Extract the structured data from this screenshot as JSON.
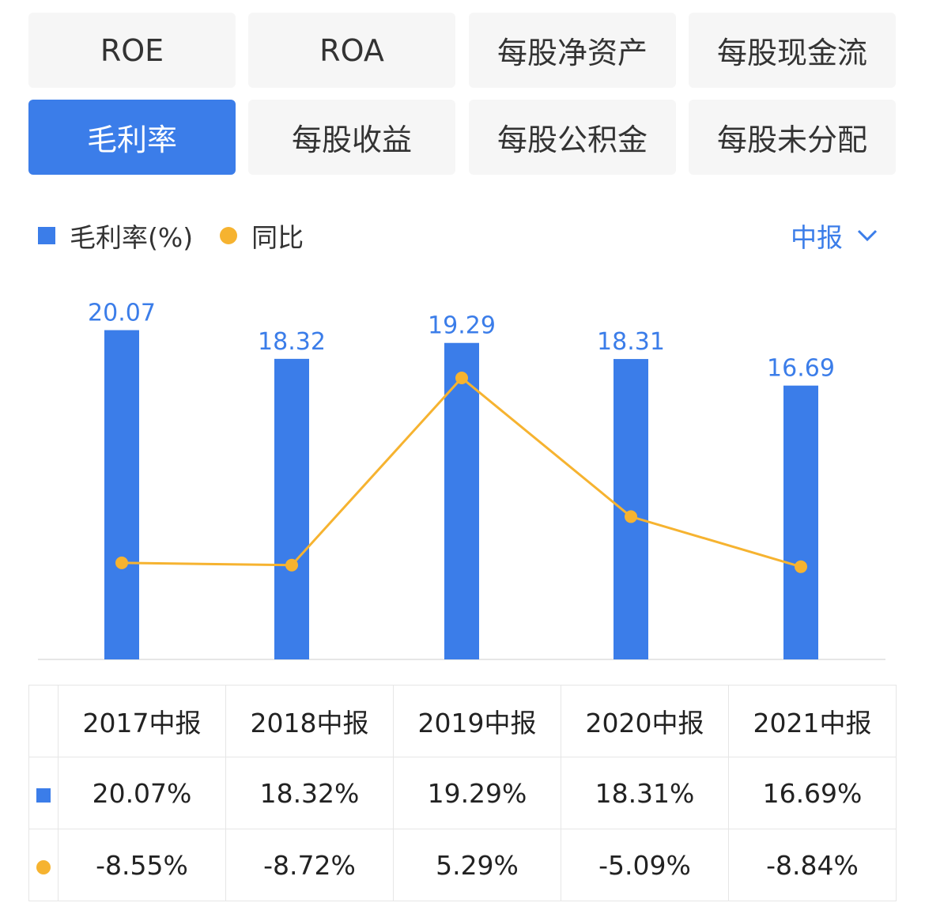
{
  "tabs": [
    {
      "label": "ROE",
      "active": false
    },
    {
      "label": "ROA",
      "active": false
    },
    {
      "label": "每股净资产",
      "active": false
    },
    {
      "label": "每股现金流",
      "active": false
    },
    {
      "label": "毛利率",
      "active": true
    },
    {
      "label": "每股收益",
      "active": false
    },
    {
      "label": "每股公积金",
      "active": false
    },
    {
      "label": "每股未分配",
      "active": false
    }
  ],
  "legend": {
    "bar_label": "毛利率(%)",
    "line_label": "同比"
  },
  "period_selector": {
    "label": "中报",
    "icon": "chevron-down-icon"
  },
  "colors": {
    "bar": "#3b7de9",
    "line": "#f6b330",
    "negative": "#27a05a",
    "positive": "#e6454a"
  },
  "chart_data": {
    "type": "bar",
    "categories": [
      "2017中报",
      "2018中报",
      "2019中报",
      "2020中报",
      "2021中报"
    ],
    "series": [
      {
        "name": "毛利率(%)",
        "type": "bar",
        "values": [
          20.07,
          18.32,
          19.29,
          18.31,
          16.69
        ],
        "labels": [
          "20.07",
          "18.32",
          "19.29",
          "18.31",
          "16.69"
        ]
      },
      {
        "name": "同比",
        "type": "line",
        "values": [
          -8.55,
          -8.72,
          5.29,
          -5.09,
          -8.84
        ]
      }
    ],
    "legend_position": "top-left",
    "grid": false
  },
  "table": {
    "headers": [
      "2017中报",
      "2018中报",
      "2019中报",
      "2020中报",
      "2021中报"
    ],
    "bar_row": [
      "20.07%",
      "18.32%",
      "19.29%",
      "18.31%",
      "16.69%"
    ],
    "line_row": [
      "-8.55%",
      "-8.72%",
      "5.29%",
      "-5.09%",
      "-8.84%"
    ]
  }
}
